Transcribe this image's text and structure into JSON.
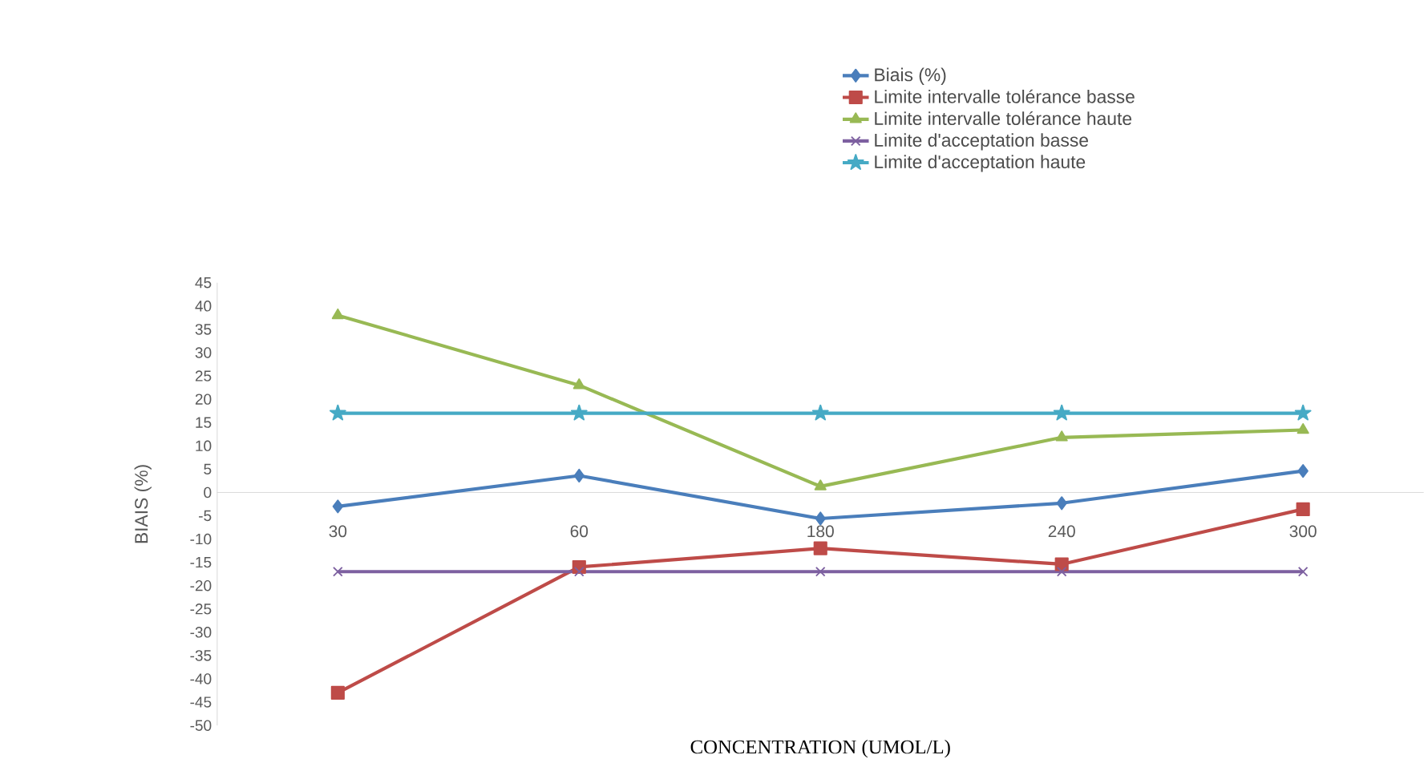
{
  "chart_data": {
    "type": "line",
    "xlabel": "CONCENTRATION (UMOL/L)",
    "ylabel": "BIAIS  (%)",
    "categories": [
      "30",
      "60",
      "180",
      "240",
      "300"
    ],
    "ylim": [
      -50,
      45
    ],
    "yticks": [
      -50,
      -45,
      -40,
      -35,
      -30,
      -25,
      -20,
      -15,
      -10,
      -5,
      0,
      5,
      10,
      15,
      20,
      25,
      30,
      35,
      40,
      45
    ],
    "legend": "top",
    "grid": false,
    "line_style": "solid",
    "series": [
      {
        "name": "Biais (%)",
        "color": "#4a7ebb",
        "marker": "diamond",
        "values": [
          -3,
          3.6,
          -5.6,
          -2.3,
          4.6
        ]
      },
      {
        "name": "Limite intervalle tolérance basse",
        "color": "#be4b48",
        "marker": "square",
        "values": [
          -43,
          -16,
          -12,
          -15.4,
          -3.6
        ]
      },
      {
        "name": "Limite intervalle tolérance haute",
        "color": "#98b954",
        "marker": "triangle",
        "values": [
          38,
          23,
          1.3,
          11.8,
          13.4
        ]
      },
      {
        "name": "Limite d'acceptation basse",
        "color": "#7d60a0",
        "marker": "cross",
        "values": [
          -17,
          -17,
          -17,
          -17,
          -17
        ]
      },
      {
        "name": "Limite d'acceptation haute",
        "color": "#46aac5",
        "marker": "star",
        "values": [
          17,
          17,
          17,
          17,
          17
        ]
      }
    ]
  }
}
